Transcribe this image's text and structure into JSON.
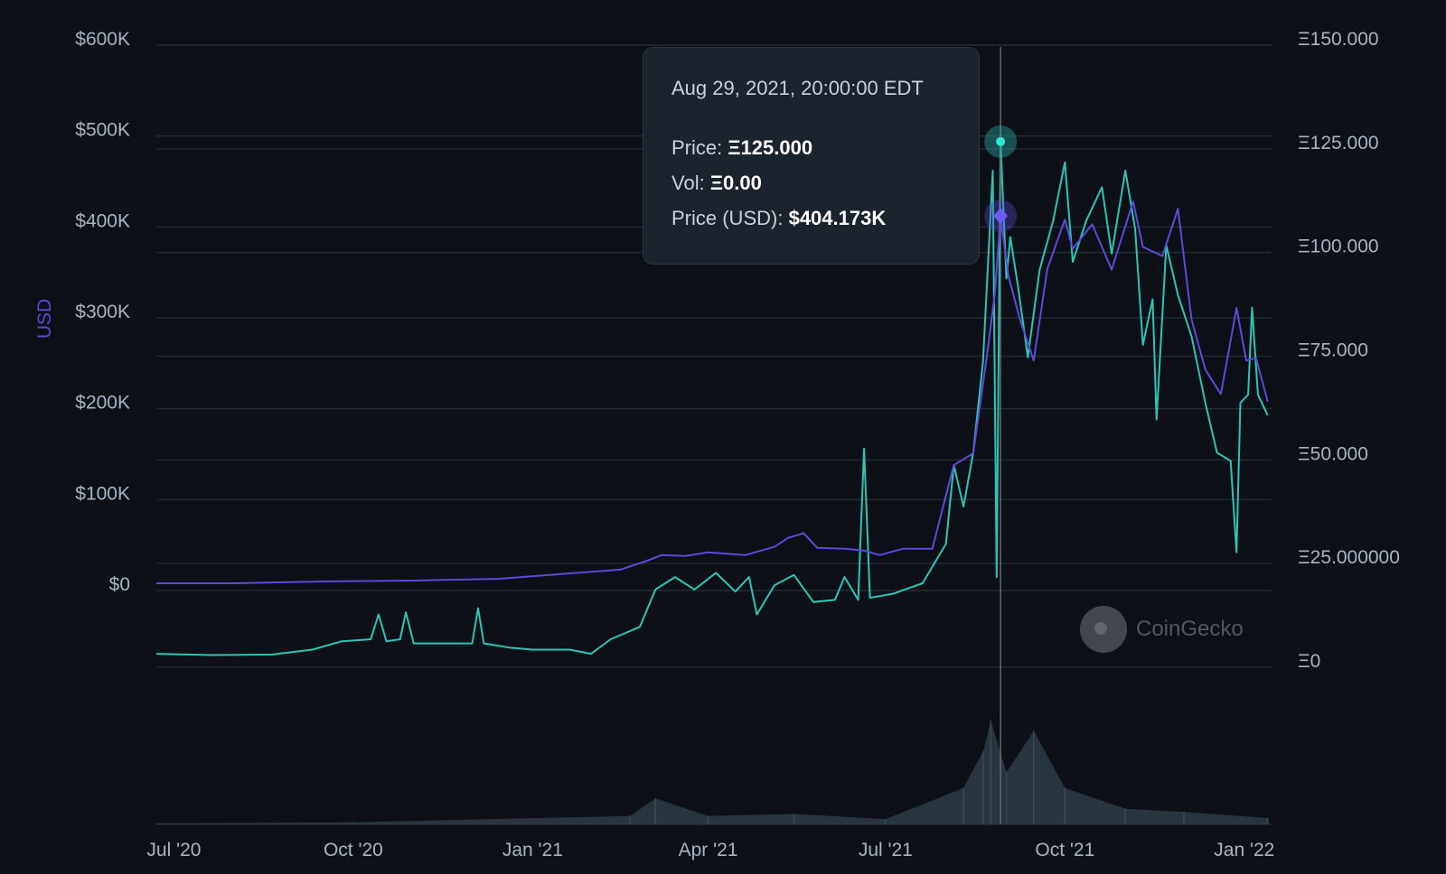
{
  "chart_data": {
    "type": "line",
    "ylabel": "USD",
    "y_left_ticks": [
      "$600K",
      "$500K",
      "$400K",
      "$300K",
      "$200K",
      "$100K",
      "$0"
    ],
    "y_left_range": [
      0,
      600000
    ],
    "y_right_ticks": [
      "Ξ150.000",
      "Ξ125.000",
      "Ξ100.000",
      "Ξ75.000",
      "Ξ50.000",
      "Ξ25.000000",
      "Ξ0"
    ],
    "y_right_range": [
      0,
      150
    ],
    "x_ticks": [
      "Jul '20",
      "Oct '20",
      "Jan '21",
      "Apr '21",
      "Jul '21",
      "Oct '21",
      "Jan '22"
    ],
    "x_tick_dates": [
      "2020-07-01",
      "2020-10-01",
      "2021-01-01",
      "2021-04-01",
      "2021-07-01",
      "2021-10-01",
      "2022-01-01"
    ],
    "x_range": [
      "2020-06-22",
      "2022-01-15"
    ],
    "grid": true,
    "series": [
      {
        "name": "Price",
        "axis": "right",
        "color": "#2ec4b6",
        "points": [
          [
            "2020-06-22",
            1.5
          ],
          [
            "2020-07-20",
            1.2
          ],
          [
            "2020-08-20",
            1.3
          ],
          [
            "2020-09-10",
            2.5
          ],
          [
            "2020-09-25",
            4.5
          ],
          [
            "2020-10-10",
            5
          ],
          [
            "2020-10-14",
            11
          ],
          [
            "2020-10-18",
            4.5
          ],
          [
            "2020-10-25",
            5
          ],
          [
            "2020-10-28",
            11.5
          ],
          [
            "2020-11-01",
            4
          ],
          [
            "2020-11-20",
            4
          ],
          [
            "2020-12-01",
            4
          ],
          [
            "2020-12-04",
            12.5
          ],
          [
            "2020-12-07",
            4
          ],
          [
            "2020-12-20",
            3
          ],
          [
            "2021-01-01",
            2.5
          ],
          [
            "2021-01-20",
            2.5
          ],
          [
            "2021-01-31",
            1.5
          ],
          [
            "2021-02-10",
            5
          ],
          [
            "2021-02-25",
            8
          ],
          [
            "2021-03-05",
            17
          ],
          [
            "2021-03-15",
            20
          ],
          [
            "2021-03-25",
            17
          ],
          [
            "2021-04-05",
            21
          ],
          [
            "2021-04-15",
            16.5
          ],
          [
            "2021-04-22",
            20
          ],
          [
            "2021-04-26",
            11
          ],
          [
            "2021-05-05",
            18
          ],
          [
            "2021-05-15",
            20.5
          ],
          [
            "2021-05-25",
            14
          ],
          [
            "2021-06-05",
            14.5
          ],
          [
            "2021-06-10",
            20
          ],
          [
            "2021-06-17",
            14.5
          ],
          [
            "2021-06-20",
            51
          ],
          [
            "2021-06-23",
            15
          ],
          [
            "2021-07-05",
            16
          ],
          [
            "2021-07-20",
            18.5
          ],
          [
            "2021-08-01",
            28
          ],
          [
            "2021-08-05",
            47
          ],
          [
            "2021-08-10",
            37
          ],
          [
            "2021-08-15",
            50
          ],
          [
            "2021-08-20",
            72
          ],
          [
            "2021-08-25",
            118
          ],
          [
            "2021-08-27",
            20
          ],
          [
            "2021-08-29",
            125
          ],
          [
            "2021-09-01",
            92
          ],
          [
            "2021-09-03",
            102
          ],
          [
            "2021-09-07",
            90
          ],
          [
            "2021-09-12",
            73
          ],
          [
            "2021-09-18",
            94
          ],
          [
            "2021-09-25",
            106
          ],
          [
            "2021-10-01",
            120
          ],
          [
            "2021-10-05",
            96
          ],
          [
            "2021-10-12",
            106
          ],
          [
            "2021-10-20",
            114
          ],
          [
            "2021-10-25",
            98
          ],
          [
            "2021-11-01",
            118
          ],
          [
            "2021-11-06",
            104
          ],
          [
            "2021-11-10",
            76
          ],
          [
            "2021-11-15",
            87
          ],
          [
            "2021-11-17",
            58
          ],
          [
            "2021-11-22",
            100
          ],
          [
            "2021-11-28",
            88
          ],
          [
            "2021-12-05",
            78
          ],
          [
            "2021-12-12",
            62
          ],
          [
            "2021-12-18",
            50
          ],
          [
            "2021-12-25",
            48
          ],
          [
            "2021-12-28",
            26
          ],
          [
            "2021-12-30",
            62
          ],
          [
            "2022-01-03",
            64
          ],
          [
            "2022-01-05",
            85
          ],
          [
            "2022-01-08",
            64
          ],
          [
            "2022-01-13",
            59
          ]
        ]
      },
      {
        "name": "Price (USD)",
        "axis": "left",
        "color": "#5b4bdb",
        "points": [
          [
            "2020-06-22",
            0
          ],
          [
            "2020-08-01",
            0
          ],
          [
            "2020-09-15",
            2000
          ],
          [
            "2020-11-01",
            3000
          ],
          [
            "2020-12-15",
            5000
          ],
          [
            "2021-01-15",
            10000
          ],
          [
            "2021-02-15",
            15000
          ],
          [
            "2021-03-01",
            25000
          ],
          [
            "2021-03-08",
            31000
          ],
          [
            "2021-03-20",
            30000
          ],
          [
            "2021-04-01",
            34000
          ],
          [
            "2021-04-20",
            31000
          ],
          [
            "2021-05-05",
            40000
          ],
          [
            "2021-05-12",
            50000
          ],
          [
            "2021-05-20",
            55000
          ],
          [
            "2021-05-27",
            39000
          ],
          [
            "2021-06-10",
            38000
          ],
          [
            "2021-06-20",
            36000
          ],
          [
            "2021-06-28",
            31000
          ],
          [
            "2021-07-10",
            38000
          ],
          [
            "2021-07-25",
            38000
          ],
          [
            "2021-08-05",
            130000
          ],
          [
            "2021-08-15",
            143000
          ],
          [
            "2021-08-22",
            250000
          ],
          [
            "2021-08-26",
            318000
          ],
          [
            "2021-08-29",
            404173
          ],
          [
            "2021-09-02",
            338000
          ],
          [
            "2021-09-08",
            290000
          ],
          [
            "2021-09-15",
            245000
          ],
          [
            "2021-09-22",
            346000
          ],
          [
            "2021-10-01",
            400000
          ],
          [
            "2021-10-05",
            368000
          ],
          [
            "2021-10-15",
            395000
          ],
          [
            "2021-10-25",
            345000
          ],
          [
            "2021-11-05",
            420000
          ],
          [
            "2021-11-10",
            370000
          ],
          [
            "2021-11-20",
            360000
          ],
          [
            "2021-11-28",
            412000
          ],
          [
            "2021-12-05",
            290000
          ],
          [
            "2021-12-12",
            235000
          ],
          [
            "2021-12-20",
            208000
          ],
          [
            "2021-12-28",
            303000
          ],
          [
            "2022-01-02",
            245000
          ],
          [
            "2022-01-07",
            248000
          ],
          [
            "2022-01-13",
            200000
          ]
        ]
      },
      {
        "name": "Vol",
        "axis": "volume",
        "color": "#2f3e48",
        "points": [
          [
            "2020-06-22",
            0.01
          ],
          [
            "2020-10-01",
            0.02
          ],
          [
            "2021-02-20",
            0.08
          ],
          [
            "2021-03-05",
            0.25
          ],
          [
            "2021-04-01",
            0.08
          ],
          [
            "2021-05-15",
            0.1
          ],
          [
            "2021-07-01",
            0.05
          ],
          [
            "2021-08-10",
            0.35
          ],
          [
            "2021-08-20",
            0.7
          ],
          [
            "2021-08-24",
            1.0
          ],
          [
            "2021-09-01",
            0.5
          ],
          [
            "2021-09-15",
            0.9
          ],
          [
            "2021-10-01",
            0.35
          ],
          [
            "2021-11-01",
            0.15
          ],
          [
            "2021-12-01",
            0.12
          ],
          [
            "2022-01-13",
            0.06
          ]
        ]
      }
    ],
    "crosshair_date": "2021-08-29",
    "tooltip": {
      "date": "Aug 29, 2021, 20:00:00 EDT",
      "price_label": "Price:",
      "price_value": "Ξ125.000",
      "vol_label": "Vol:",
      "vol_value": "Ξ0.00",
      "usd_label": "Price (USD):",
      "usd_value": "$404.173K"
    },
    "watermark": "CoinGecko"
  }
}
